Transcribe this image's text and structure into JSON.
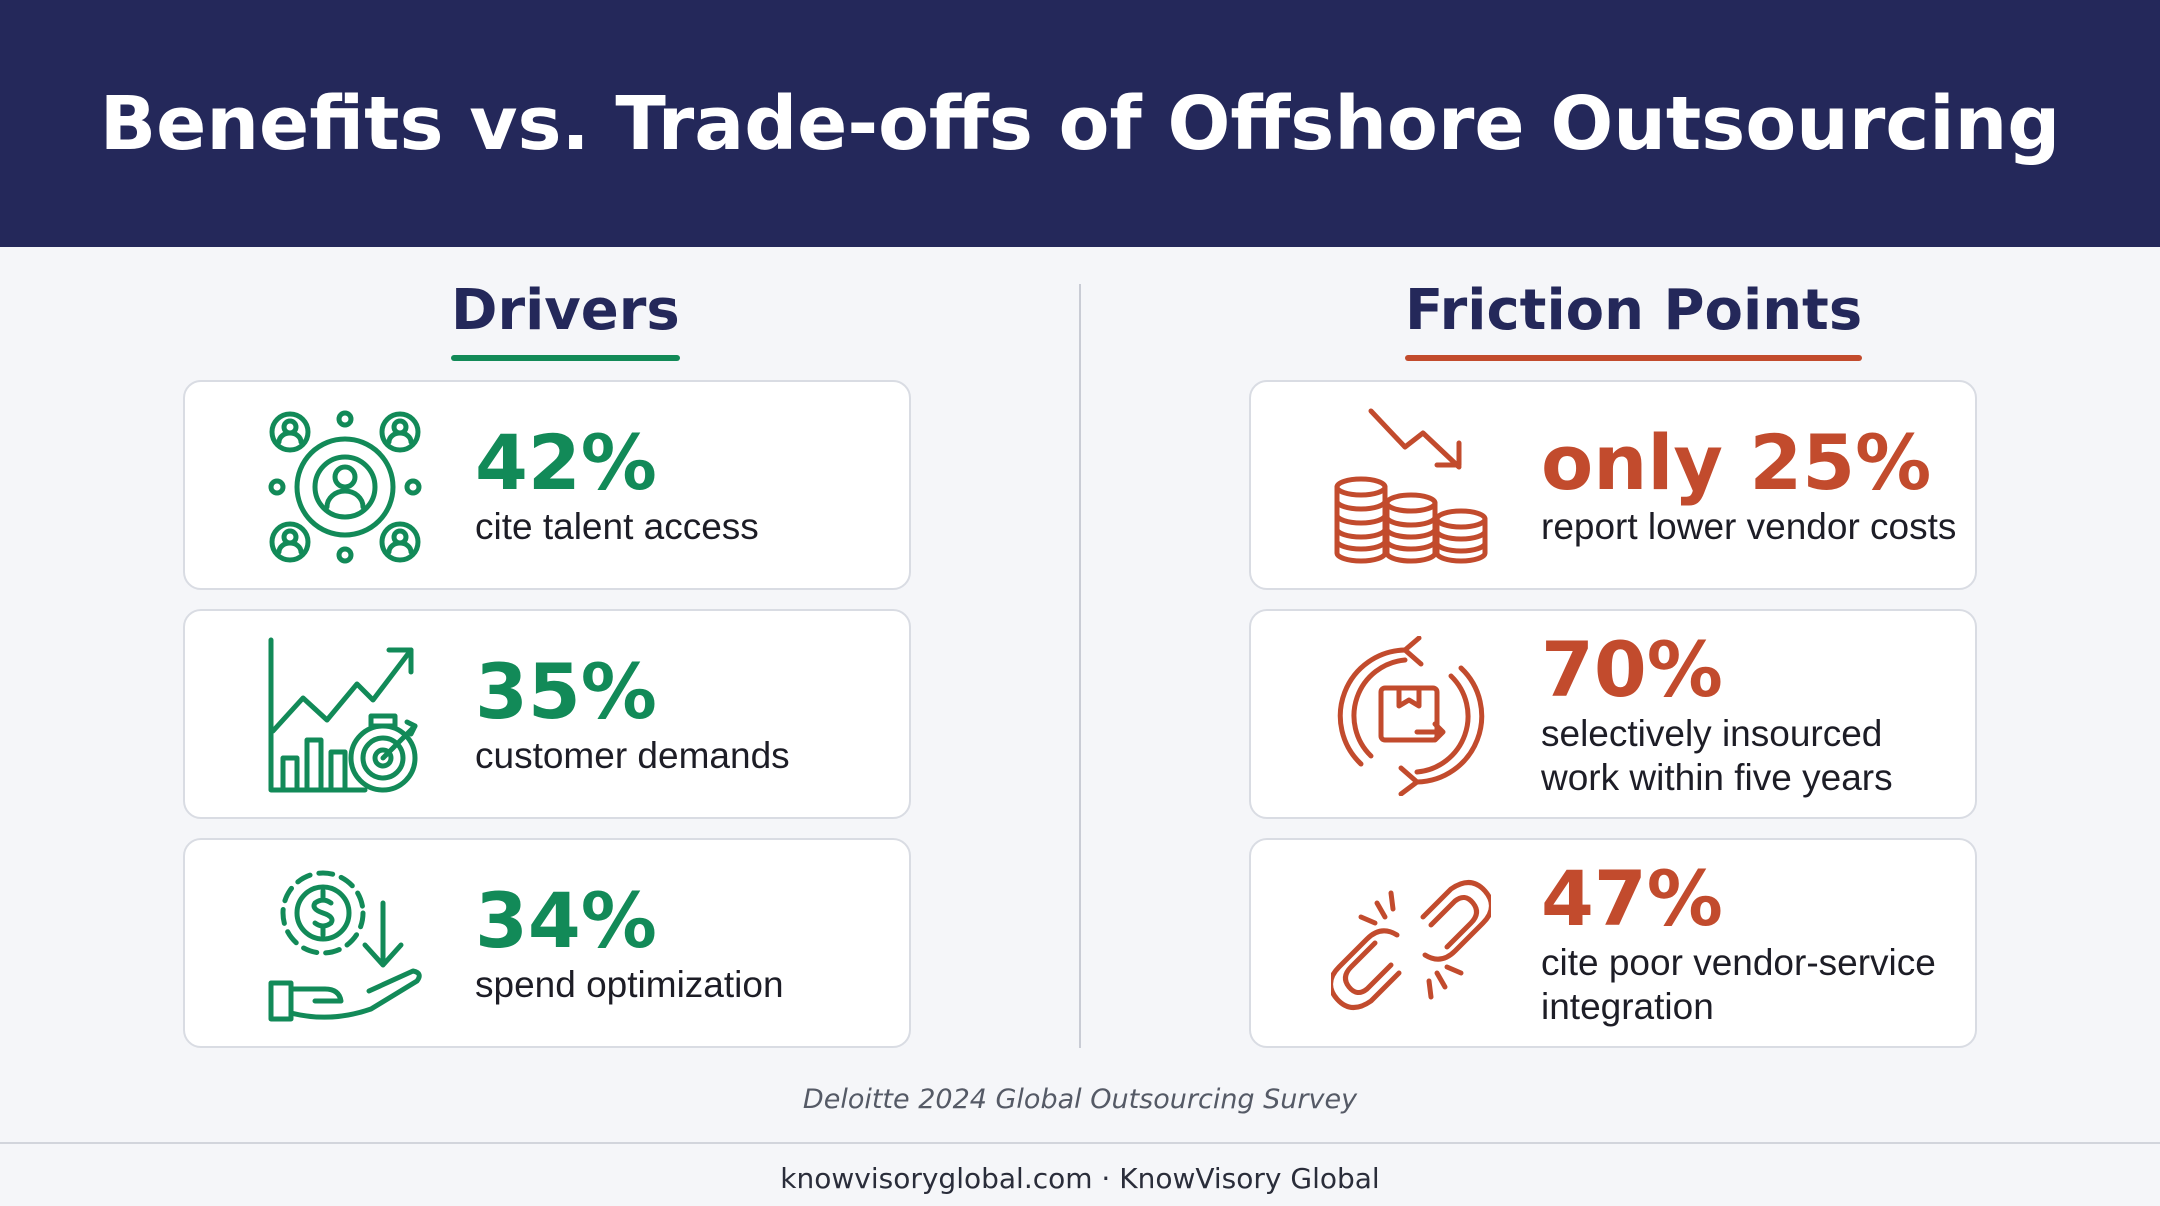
{
  "title": "Benefits vs. Trade-offs of Offshore Outsourcing",
  "colors": {
    "header_bg": "#24285a",
    "green": "#128a58",
    "orange": "#c24b2d"
  },
  "drivers": {
    "heading": "Drivers",
    "cards": [
      {
        "stat": "42%",
        "desc": [
          "cite talent access"
        ],
        "icon": "talent-network-icon"
      },
      {
        "stat": "35%",
        "desc": [
          "customer demands"
        ],
        "icon": "growth-target-icon"
      },
      {
        "stat": "34%",
        "desc": [
          "spend optimization"
        ],
        "icon": "cost-savings-hand-icon"
      }
    ]
  },
  "friction": {
    "heading": "Friction Points",
    "cards": [
      {
        "stat": "only 25%",
        "desc": [
          "report lower vendor costs"
        ],
        "icon": "coins-decline-icon"
      },
      {
        "stat": "70%",
        "desc": [
          "selectively insourced",
          "work within five years"
        ],
        "icon": "insourcing-cycle-icon"
      },
      {
        "stat": "47%",
        "desc": [
          "cite poor vendor-service",
          "integration"
        ],
        "icon": "broken-chain-icon"
      }
    ]
  },
  "source": "Deloitte 2024 Global Outsourcing Survey",
  "footer": "knowvisoryglobal.com · KnowVisory Global"
}
